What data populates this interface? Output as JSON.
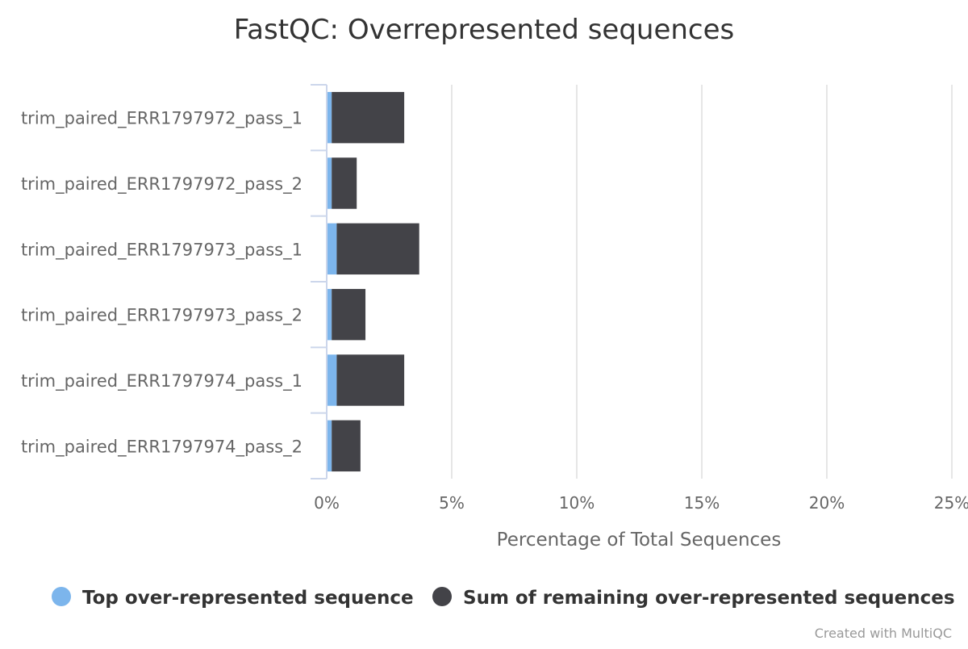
{
  "chart_data": {
    "type": "bar",
    "orientation": "horizontal",
    "stacked": true,
    "title": "FastQC: Overrepresented sequences",
    "xlabel": "Percentage of Total Sequences",
    "ylabel": "",
    "xlim": [
      0,
      25
    ],
    "x_ticks": [
      "0%",
      "5%",
      "10%",
      "15%",
      "20%",
      "25%"
    ],
    "grid": true,
    "legend_position": "bottom",
    "categories": [
      "trim_paired_ERR1797972_pass_1",
      "trim_paired_ERR1797972_pass_2",
      "trim_paired_ERR1797973_pass_1",
      "trim_paired_ERR1797973_pass_2",
      "trim_paired_ERR1797974_pass_1",
      "trim_paired_ERR1797974_pass_2"
    ],
    "series": [
      {
        "name": "Top over-represented sequence",
        "color": "#7cb5ec",
        "values": [
          0.2,
          0.2,
          0.4,
          0.2,
          0.4,
          0.2
        ]
      },
      {
        "name": "Sum of remaining over-represented sequences",
        "color": "#434348",
        "values": [
          2.9,
          1.0,
          3.3,
          1.35,
          2.7,
          1.15
        ]
      }
    ]
  },
  "credits": "Created with MultiQC"
}
